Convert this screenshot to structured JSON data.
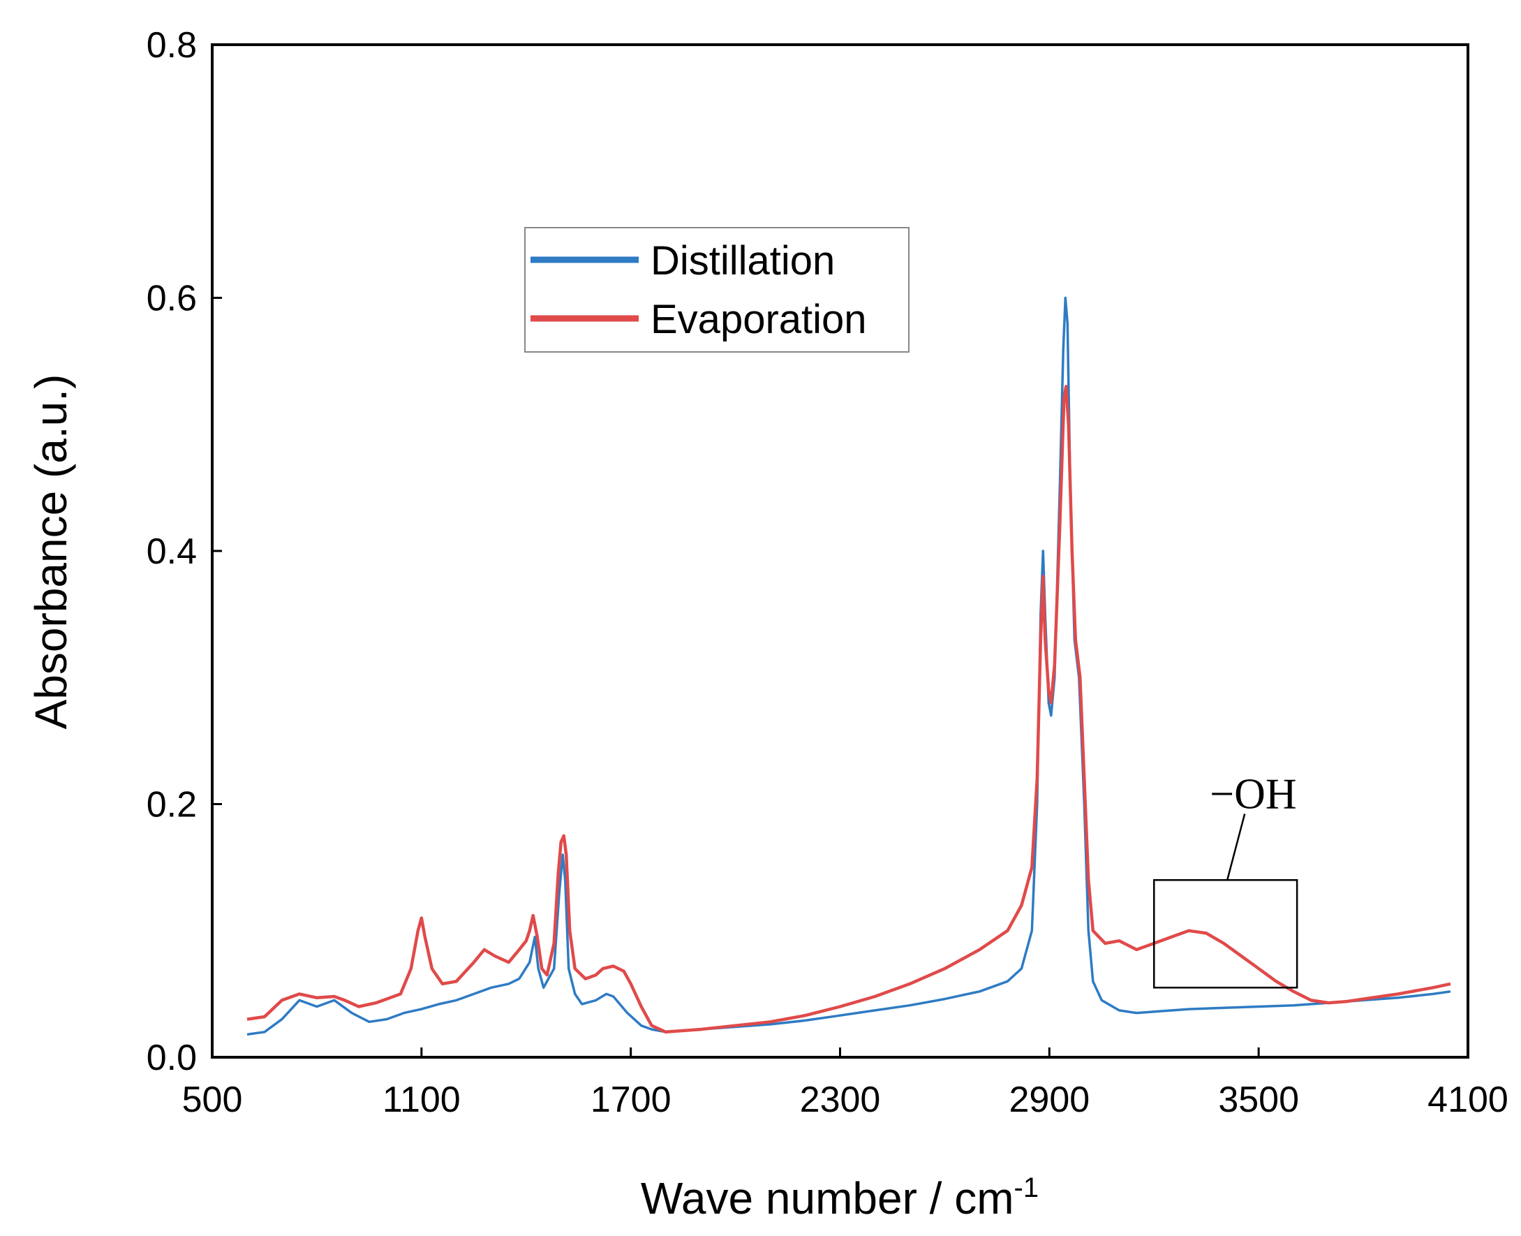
{
  "chart_data": {
    "type": "line",
    "title": "",
    "xlabel": "Wave number / cm",
    "xlabel_sup": "-1",
    "ylabel": "Absorbance (a.u.)",
    "xlim": [
      500,
      4100
    ],
    "ylim": [
      0,
      0.8
    ],
    "xticks": [
      500,
      1100,
      1700,
      2300,
      2900,
      3500,
      4100
    ],
    "xtick_labels": [
      "500",
      "1100",
      "1700",
      "2300",
      "2900",
      "3500",
      "4100"
    ],
    "yticks": [
      0,
      0.2,
      0.4,
      0.6,
      0.8
    ],
    "ytick_labels": [
      "0.0",
      "0.2",
      "0.4",
      "0.6",
      "0.8"
    ],
    "grid": false,
    "legend_position": "upper-center",
    "annotation": {
      "text": "−OH",
      "box_x": [
        3200,
        3610
      ],
      "box_y": [
        0.055,
        0.14
      ],
      "pointer": [
        3410,
        0.14
      ],
      "label_at": [
        3440,
        0.2
      ]
    },
    "series": [
      {
        "name": "Distillation",
        "color": "#2e7bc4",
        "points": [
          [
            600,
            0.018
          ],
          [
            650,
            0.02
          ],
          [
            700,
            0.03
          ],
          [
            750,
            0.045
          ],
          [
            800,
            0.04
          ],
          [
            850,
            0.045
          ],
          [
            900,
            0.035
          ],
          [
            950,
            0.028
          ],
          [
            1000,
            0.03
          ],
          [
            1050,
            0.035
          ],
          [
            1100,
            0.038
          ],
          [
            1150,
            0.042
          ],
          [
            1200,
            0.045
          ],
          [
            1250,
            0.05
          ],
          [
            1300,
            0.055
          ],
          [
            1350,
            0.058
          ],
          [
            1380,
            0.062
          ],
          [
            1410,
            0.075
          ],
          [
            1425,
            0.095
          ],
          [
            1435,
            0.07
          ],
          [
            1450,
            0.055
          ],
          [
            1480,
            0.07
          ],
          [
            1495,
            0.13
          ],
          [
            1505,
            0.16
          ],
          [
            1512,
            0.14
          ],
          [
            1522,
            0.07
          ],
          [
            1540,
            0.05
          ],
          [
            1560,
            0.042
          ],
          [
            1600,
            0.045
          ],
          [
            1630,
            0.05
          ],
          [
            1650,
            0.048
          ],
          [
            1690,
            0.035
          ],
          [
            1730,
            0.025
          ],
          [
            1760,
            0.022
          ],
          [
            1800,
            0.02
          ],
          [
            1900,
            0.022
          ],
          [
            2000,
            0.024
          ],
          [
            2100,
            0.026
          ],
          [
            2200,
            0.029
          ],
          [
            2300,
            0.033
          ],
          [
            2400,
            0.037
          ],
          [
            2500,
            0.041
          ],
          [
            2600,
            0.046
          ],
          [
            2700,
            0.052
          ],
          [
            2780,
            0.06
          ],
          [
            2820,
            0.07
          ],
          [
            2850,
            0.1
          ],
          [
            2865,
            0.2
          ],
          [
            2875,
            0.35
          ],
          [
            2882,
            0.4
          ],
          [
            2888,
            0.35
          ],
          [
            2898,
            0.28
          ],
          [
            2905,
            0.27
          ],
          [
            2915,
            0.3
          ],
          [
            2930,
            0.45
          ],
          [
            2940,
            0.56
          ],
          [
            2946,
            0.6
          ],
          [
            2952,
            0.58
          ],
          [
            2960,
            0.45
          ],
          [
            2972,
            0.33
          ],
          [
            2985,
            0.3
          ],
          [
            3000,
            0.2
          ],
          [
            3012,
            0.1
          ],
          [
            3025,
            0.06
          ],
          [
            3050,
            0.045
          ],
          [
            3100,
            0.037
          ],
          [
            3150,
            0.035
          ],
          [
            3200,
            0.036
          ],
          [
            3300,
            0.038
          ],
          [
            3400,
            0.039
          ],
          [
            3500,
            0.04
          ],
          [
            3600,
            0.041
          ],
          [
            3700,
            0.043
          ],
          [
            3800,
            0.045
          ],
          [
            3900,
            0.047
          ],
          [
            4000,
            0.05
          ],
          [
            4050,
            0.052
          ]
        ]
      },
      {
        "name": "Evaporation",
        "color": "#e04a4a",
        "points": [
          [
            600,
            0.03
          ],
          [
            650,
            0.032
          ],
          [
            700,
            0.045
          ],
          [
            750,
            0.05
          ],
          [
            800,
            0.047
          ],
          [
            850,
            0.048
          ],
          [
            880,
            0.045
          ],
          [
            920,
            0.04
          ],
          [
            970,
            0.043
          ],
          [
            1000,
            0.046
          ],
          [
            1040,
            0.05
          ],
          [
            1070,
            0.07
          ],
          [
            1090,
            0.1
          ],
          [
            1100,
            0.11
          ],
          [
            1110,
            0.095
          ],
          [
            1130,
            0.07
          ],
          [
            1160,
            0.058
          ],
          [
            1200,
            0.06
          ],
          [
            1250,
            0.075
          ],
          [
            1280,
            0.085
          ],
          [
            1310,
            0.08
          ],
          [
            1350,
            0.075
          ],
          [
            1380,
            0.085
          ],
          [
            1400,
            0.092
          ],
          [
            1410,
            0.1
          ],
          [
            1420,
            0.112
          ],
          [
            1432,
            0.095
          ],
          [
            1445,
            0.07
          ],
          [
            1460,
            0.065
          ],
          [
            1480,
            0.09
          ],
          [
            1492,
            0.145
          ],
          [
            1500,
            0.17
          ],
          [
            1508,
            0.175
          ],
          [
            1515,
            0.16
          ],
          [
            1525,
            0.1
          ],
          [
            1540,
            0.07
          ],
          [
            1570,
            0.062
          ],
          [
            1600,
            0.065
          ],
          [
            1620,
            0.07
          ],
          [
            1650,
            0.072
          ],
          [
            1680,
            0.068
          ],
          [
            1700,
            0.058
          ],
          [
            1730,
            0.04
          ],
          [
            1760,
            0.025
          ],
          [
            1800,
            0.02
          ],
          [
            1900,
            0.022
          ],
          [
            2000,
            0.025
          ],
          [
            2100,
            0.028
          ],
          [
            2200,
            0.033
          ],
          [
            2300,
            0.04
          ],
          [
            2400,
            0.048
          ],
          [
            2500,
            0.058
          ],
          [
            2600,
            0.07
          ],
          [
            2700,
            0.085
          ],
          [
            2780,
            0.1
          ],
          [
            2820,
            0.12
          ],
          [
            2850,
            0.15
          ],
          [
            2865,
            0.22
          ],
          [
            2875,
            0.33
          ],
          [
            2882,
            0.38
          ],
          [
            2888,
            0.33
          ],
          [
            2898,
            0.29
          ],
          [
            2905,
            0.28
          ],
          [
            2915,
            0.31
          ],
          [
            2930,
            0.42
          ],
          [
            2942,
            0.52
          ],
          [
            2948,
            0.53
          ],
          [
            2955,
            0.5
          ],
          [
            2965,
            0.4
          ],
          [
            2975,
            0.33
          ],
          [
            2988,
            0.3
          ],
          [
            3000,
            0.22
          ],
          [
            3012,
            0.14
          ],
          [
            3025,
            0.1
          ],
          [
            3060,
            0.09
          ],
          [
            3100,
            0.092
          ],
          [
            3150,
            0.085
          ],
          [
            3200,
            0.09
          ],
          [
            3250,
            0.095
          ],
          [
            3300,
            0.1
          ],
          [
            3350,
            0.098
          ],
          [
            3400,
            0.09
          ],
          [
            3450,
            0.08
          ],
          [
            3500,
            0.07
          ],
          [
            3550,
            0.06
          ],
          [
            3600,
            0.052
          ],
          [
            3650,
            0.045
          ],
          [
            3700,
            0.043
          ],
          [
            3750,
            0.044
          ],
          [
            3800,
            0.046
          ],
          [
            3900,
            0.05
          ],
          [
            4000,
            0.055
          ],
          [
            4050,
            0.058
          ]
        ]
      }
    ]
  }
}
